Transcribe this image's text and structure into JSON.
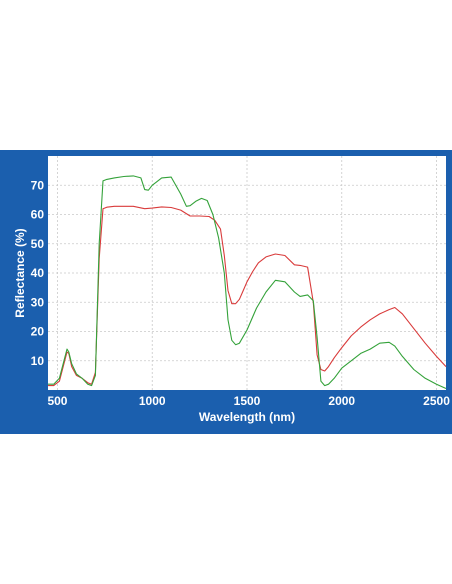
{
  "chart_data": {
    "type": "line",
    "title": "",
    "xlabel": "Wavelength (nm)",
    "ylabel": "Reflectance (%)",
    "xlim": [
      450,
      2550
    ],
    "ylim": [
      0,
      80
    ],
    "xticks": [
      500,
      1000,
      1500,
      2000,
      2500
    ],
    "yticks": [
      10,
      20,
      30,
      40,
      50,
      60,
      70
    ],
    "grid": true,
    "legend": "none",
    "series": [
      {
        "color": "#d93b3b",
        "x": [
          450,
          480,
          510,
          530,
          550,
          560,
          575,
          600,
          630,
          660,
          680,
          700,
          720,
          740,
          760,
          800,
          900,
          960,
          1000,
          1050,
          1100,
          1150,
          1200,
          1250,
          1300,
          1330,
          1360,
          1380,
          1400,
          1420,
          1440,
          1460,
          1480,
          1500,
          1530,
          1560,
          1600,
          1650,
          1700,
          1750,
          1780,
          1820,
          1850,
          1870,
          1890,
          1910,
          1930,
          1960,
          2000,
          2050,
          2100,
          2150,
          2200,
          2250,
          2280,
          2320,
          2380,
          2440,
          2500,
          2550
        ],
        "y": [
          1.5,
          1.5,
          3,
          8,
          13,
          12.5,
          8,
          5,
          4,
          2.5,
          2,
          6,
          45,
          62,
          62.5,
          62.8,
          62.8,
          62,
          62.2,
          62.6,
          62.4,
          61.5,
          59.5,
          59.5,
          59.3,
          58,
          55,
          46,
          34,
          29.5,
          29.5,
          31,
          34,
          37,
          40.5,
          43.5,
          45.5,
          46.5,
          46,
          42.8,
          42.6,
          42,
          30,
          12,
          7,
          6.5,
          8,
          11,
          14.5,
          18.5,
          21.5,
          24,
          26,
          27.5,
          28.2,
          26,
          21,
          16,
          11.5,
          8
        ]
      },
      {
        "color": "#34a23a",
        "x": [
          450,
          480,
          510,
          530,
          550,
          560,
          575,
          600,
          630,
          660,
          680,
          700,
          720,
          740,
          760,
          800,
          850,
          900,
          940,
          960,
          980,
          1000,
          1050,
          1100,
          1150,
          1180,
          1200,
          1230,
          1260,
          1290,
          1320,
          1350,
          1380,
          1400,
          1420,
          1440,
          1460,
          1500,
          1550,
          1600,
          1650,
          1700,
          1750,
          1780,
          1820,
          1850,
          1870,
          1890,
          1910,
          1930,
          1960,
          2000,
          2050,
          2100,
          2150,
          2200,
          2250,
          2280,
          2320,
          2380,
          2440,
          2500,
          2550
        ],
        "y": [
          2,
          2,
          4,
          9,
          14,
          13,
          9,
          5.5,
          4,
          2,
          1.5,
          5,
          50,
          71.5,
          72,
          72.5,
          73,
          73.2,
          72.5,
          68.5,
          68.3,
          70,
          72.5,
          72.8,
          67,
          62.8,
          63,
          64.5,
          65.5,
          64.8,
          60,
          52,
          40,
          24,
          17,
          15.5,
          16,
          20.5,
          28,
          33.5,
          37.5,
          37,
          33.5,
          32,
          32.5,
          30.5,
          18,
          3,
          1.5,
          2,
          4,
          7.5,
          10,
          12.5,
          14,
          16,
          16.3,
          15,
          11.5,
          7,
          4,
          2,
          0.5
        ]
      }
    ]
  }
}
